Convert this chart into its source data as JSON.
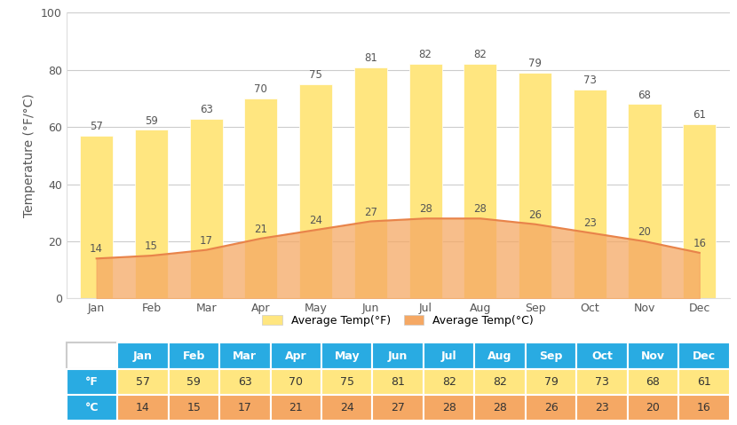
{
  "months": [
    "Jan",
    "Feb",
    "Mar",
    "Apr",
    "May",
    "Jun",
    "Jul",
    "Aug",
    "Sep",
    "Oct",
    "Nov",
    "Dec"
  ],
  "temp_f": [
    57,
    59,
    63,
    70,
    75,
    81,
    82,
    82,
    79,
    73,
    68,
    61
  ],
  "temp_c": [
    14,
    15,
    17,
    21,
    24,
    27,
    28,
    28,
    26,
    23,
    20,
    16
  ],
  "bar_color_f": "#FFE680",
  "area_fill_color_c": "#F5A864",
  "area_line_color_c": "#E8834A",
  "ylabel": "Temperature (°F/°C)",
  "ylim": [
    0,
    100
  ],
  "yticks": [
    0,
    20,
    40,
    60,
    80,
    100
  ],
  "legend_label_f": "Average Temp(°F)",
  "legend_label_c": "Average Temp(°C)",
  "table_header_color": "#29ABE2",
  "table_row_f_color": "#FFE680",
  "table_row_c_color": "#F5A864",
  "table_header_text_color": "#FFFFFF",
  "table_data_text_color": "#333333",
  "grid_color": "#CCCCCC",
  "background_color": "#FFFFFF",
  "annotation_fontsize": 8.5,
  "axis_label_fontsize": 10,
  "tick_label_fontsize": 9,
  "bar_width": 0.6
}
